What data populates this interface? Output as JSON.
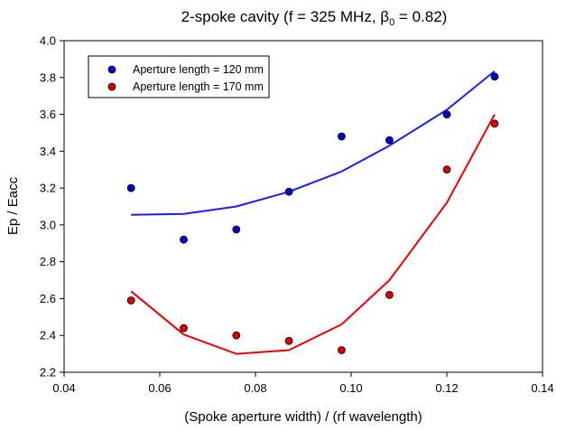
{
  "chart_data": {
    "type": "scatter",
    "title": {
      "main": "2-spoke cavity (f = 325 MHz, ",
      "beta": "β",
      "sub": "0",
      "tail": " = 0.82)"
    },
    "xlabel": "(Spoke aperture width) / (rf wavelength)",
    "ylabel": "Ep / Eacc",
    "xlim": [
      0.04,
      0.14
    ],
    "ylim": [
      2.2,
      4.0
    ],
    "xticks": [
      "0.04",
      "0.06",
      "0.08",
      "0.10",
      "0.12",
      "0.14"
    ],
    "yticks": [
      "2.2",
      "2.4",
      "2.6",
      "2.8",
      "3.0",
      "3.2",
      "3.4",
      "3.6",
      "3.8",
      "4.0"
    ],
    "grid": false,
    "legend_position": "top-left",
    "series": [
      {
        "name": "Aperture length = 120 mm",
        "color": "#0000cc",
        "line_color": "#1a1aff",
        "points": {
          "x": [
            0.054,
            0.065,
            0.076,
            0.087,
            0.098,
            0.108,
            0.12,
            0.13
          ],
          "y": [
            3.2,
            2.92,
            2.975,
            3.18,
            3.48,
            3.46,
            3.6,
            3.805
          ]
        },
        "fit": {
          "x": [
            0.054,
            0.065,
            0.076,
            0.087,
            0.098,
            0.108,
            0.12,
            0.13
          ],
          "y": [
            3.055,
            3.06,
            3.1,
            3.18,
            3.29,
            3.43,
            3.625,
            3.835
          ]
        }
      },
      {
        "name": "Aperture length = 170 mm",
        "color": "#dd0000",
        "line_color": "#ee0000",
        "points": {
          "x": [
            0.054,
            0.065,
            0.076,
            0.087,
            0.098,
            0.108,
            0.12,
            0.13
          ],
          "y": [
            2.59,
            2.44,
            2.4,
            2.37,
            2.32,
            2.62,
            3.3,
            3.55
          ]
        },
        "fit": {
          "x": [
            0.054,
            0.065,
            0.076,
            0.087,
            0.098,
            0.108,
            0.12,
            0.13
          ],
          "y": [
            2.64,
            2.405,
            2.3,
            2.32,
            2.46,
            2.7,
            3.12,
            3.6
          ]
        }
      }
    ]
  }
}
